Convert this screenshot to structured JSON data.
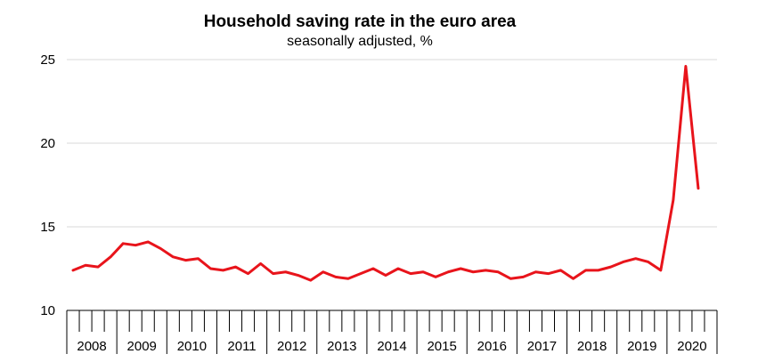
{
  "chart_data": {
    "type": "line",
    "title": "Household saving rate in the euro area",
    "subtitle": "seasonally adjusted, %",
    "xlabel": "",
    "ylabel": "",
    "ylim": [
      10,
      25
    ],
    "yticks": [
      10,
      15,
      20,
      25
    ],
    "grid": true,
    "legend": "none",
    "line_color": "#e8141b",
    "year_labels": [
      "2008",
      "2009",
      "2010",
      "2011",
      "2012",
      "2013",
      "2014",
      "2015",
      "2016",
      "2017",
      "2018",
      "2019",
      "2020"
    ],
    "quarters_per_year": 4,
    "series": [
      {
        "values": [
          12.4,
          12.7,
          12.6,
          13.2,
          14.0,
          13.9,
          14.1,
          13.7,
          13.2,
          13.0,
          13.1,
          12.5,
          12.4,
          12.6,
          12.2,
          12.8,
          12.2,
          12.3,
          12.1,
          11.8,
          12.3,
          12.0,
          11.9,
          12.2,
          12.5,
          12.1,
          12.5,
          12.2,
          12.3,
          12.0,
          12.3,
          12.5,
          12.3,
          12.4,
          12.3,
          11.9,
          12.0,
          12.3,
          12.2,
          12.4,
          11.9,
          12.4,
          12.4,
          12.6,
          12.9,
          13.1,
          12.9,
          12.4,
          16.6,
          24.6,
          17.3
        ]
      }
    ]
  }
}
